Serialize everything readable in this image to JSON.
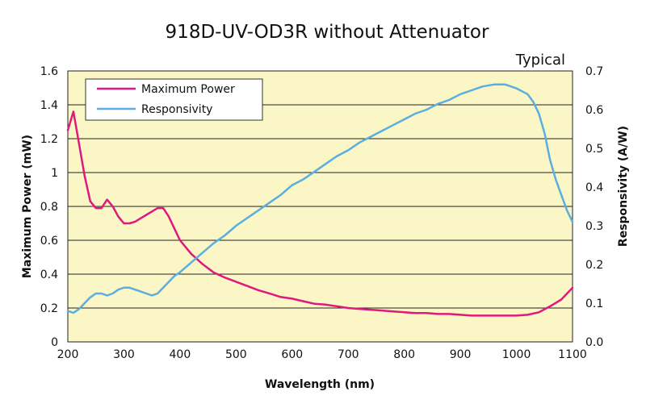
{
  "chart_data": {
    "type": "line",
    "title": "918D-UV-OD3R without Attenuator",
    "annotation": "Typical",
    "xlabel": "Wavelength (nm)",
    "ylabel_left": "Maximum Power (mW)",
    "ylabel_right": "Responsivity (A/W)",
    "xlim": [
      200,
      1100
    ],
    "ylim_left": [
      0,
      1.6
    ],
    "ylim_right": [
      0,
      0.7
    ],
    "x_ticks": [
      "200",
      "300",
      "400",
      "500",
      "600",
      "700",
      "800",
      "900",
      "1000",
      "1100"
    ],
    "y_left_ticks": [
      "0",
      "0.2",
      "0.4",
      "0.6",
      "0.8",
      "1",
      "1.2",
      "1.4",
      "1.6"
    ],
    "y_right_ticks": [
      "0.0",
      "0.1",
      "0.2",
      "0.3",
      "0.4",
      "0.5",
      "0.6",
      "0.7"
    ],
    "grid": "horizontal",
    "background_color": "#fbf6c6",
    "legend_position": "top-left",
    "series": [
      {
        "name": "Maximum Power",
        "axis": "left",
        "color": "#e0197d",
        "x": [
          200,
          210,
          220,
          230,
          240,
          250,
          260,
          270,
          280,
          290,
          300,
          310,
          320,
          330,
          340,
          350,
          360,
          370,
          380,
          390,
          400,
          420,
          440,
          460,
          480,
          500,
          520,
          540,
          560,
          580,
          600,
          620,
          640,
          660,
          680,
          700,
          720,
          740,
          760,
          780,
          800,
          820,
          840,
          860,
          880,
          900,
          920,
          940,
          960,
          980,
          1000,
          1020,
          1040,
          1060,
          1080,
          1100
        ],
        "values": [
          1.25,
          1.36,
          1.17,
          0.98,
          0.83,
          0.79,
          0.79,
          0.84,
          0.8,
          0.74,
          0.7,
          0.7,
          0.71,
          0.73,
          0.75,
          0.77,
          0.79,
          0.79,
          0.74,
          0.67,
          0.6,
          0.52,
          0.46,
          0.41,
          0.38,
          0.355,
          0.33,
          0.305,
          0.285,
          0.265,
          0.255,
          0.24,
          0.225,
          0.22,
          0.21,
          0.2,
          0.195,
          0.19,
          0.185,
          0.18,
          0.175,
          0.17,
          0.17,
          0.165,
          0.165,
          0.16,
          0.155,
          0.155,
          0.155,
          0.155,
          0.155,
          0.16,
          0.175,
          0.21,
          0.25,
          0.32
        ]
      },
      {
        "name": "Responsivity",
        "axis": "right",
        "color": "#5aaee0",
        "x": [
          200,
          210,
          220,
          230,
          240,
          250,
          260,
          270,
          280,
          290,
          300,
          310,
          320,
          330,
          340,
          350,
          360,
          370,
          380,
          390,
          400,
          420,
          440,
          460,
          480,
          500,
          520,
          540,
          560,
          580,
          600,
          620,
          640,
          660,
          680,
          700,
          720,
          740,
          760,
          780,
          800,
          820,
          840,
          860,
          880,
          900,
          920,
          940,
          960,
          980,
          1000,
          1020,
          1030,
          1040,
          1050,
          1060,
          1070,
          1080,
          1090,
          1100
        ],
        "values": [
          0.08,
          0.075,
          0.085,
          0.1,
          0.115,
          0.125,
          0.125,
          0.12,
          0.125,
          0.135,
          0.14,
          0.14,
          0.135,
          0.13,
          0.125,
          0.12,
          0.125,
          0.14,
          0.155,
          0.17,
          0.18,
          0.205,
          0.23,
          0.255,
          0.275,
          0.3,
          0.32,
          0.34,
          0.36,
          0.38,
          0.405,
          0.42,
          0.44,
          0.46,
          0.48,
          0.495,
          0.515,
          0.53,
          0.545,
          0.56,
          0.575,
          0.59,
          0.6,
          0.615,
          0.625,
          0.64,
          0.65,
          0.66,
          0.665,
          0.665,
          0.655,
          0.64,
          0.62,
          0.59,
          0.54,
          0.47,
          0.42,
          0.38,
          0.34,
          0.31
        ]
      }
    ]
  }
}
